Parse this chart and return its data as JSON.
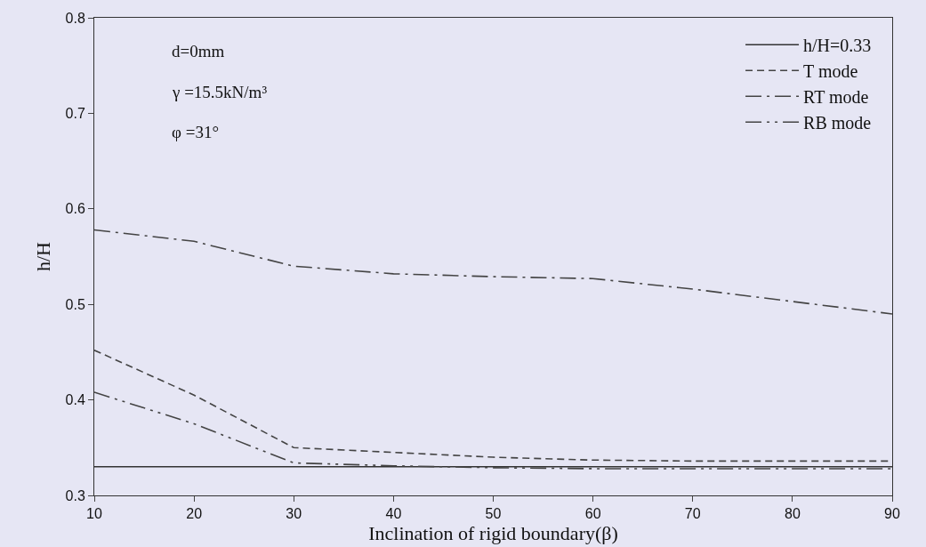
{
  "chart_data": {
    "type": "line",
    "xlabel": "Inclination of rigid boundary(β)",
    "ylabel": "h/H",
    "x": [
      10,
      20,
      30,
      40,
      50,
      60,
      70,
      80,
      90
    ],
    "series": [
      {
        "name": "h/H=0.33",
        "color": "#333333",
        "line_style": "solid",
        "values": [
          0.33,
          0.33,
          0.33,
          0.33,
          0.33,
          0.33,
          0.33,
          0.33,
          0.33
        ]
      },
      {
        "name": "T mode",
        "color": "#444444",
        "line_style": "dashed",
        "values": [
          0.452,
          0.405,
          0.35,
          0.345,
          0.34,
          0.337,
          0.336,
          0.336,
          0.336
        ]
      },
      {
        "name": "RT mode",
        "color": "#444444",
        "line_style": "dashdot",
        "values": [
          0.578,
          0.566,
          0.54,
          0.532,
          0.529,
          0.527,
          0.516,
          0.503,
          0.49
        ]
      },
      {
        "name": "RB mode",
        "color": "#444444",
        "line_style": "dashdotdot",
        "values": [
          0.408,
          0.375,
          0.334,
          0.331,
          0.329,
          0.328,
          0.328,
          0.328,
          0.328
        ]
      }
    ],
    "xlim": [
      10,
      90
    ],
    "xticks": [
      10,
      20,
      30,
      40,
      50,
      60,
      70,
      80,
      90
    ],
    "ylim": [
      0.3,
      0.8
    ],
    "yticks": [
      0.3,
      0.4,
      0.5,
      0.6,
      0.7,
      0.8
    ],
    "grid": false,
    "legend": "top right",
    "marker": "none",
    "annotations": [
      "d=0mm",
      "γ =15.5kN/m³",
      "φ =31°"
    ]
  }
}
